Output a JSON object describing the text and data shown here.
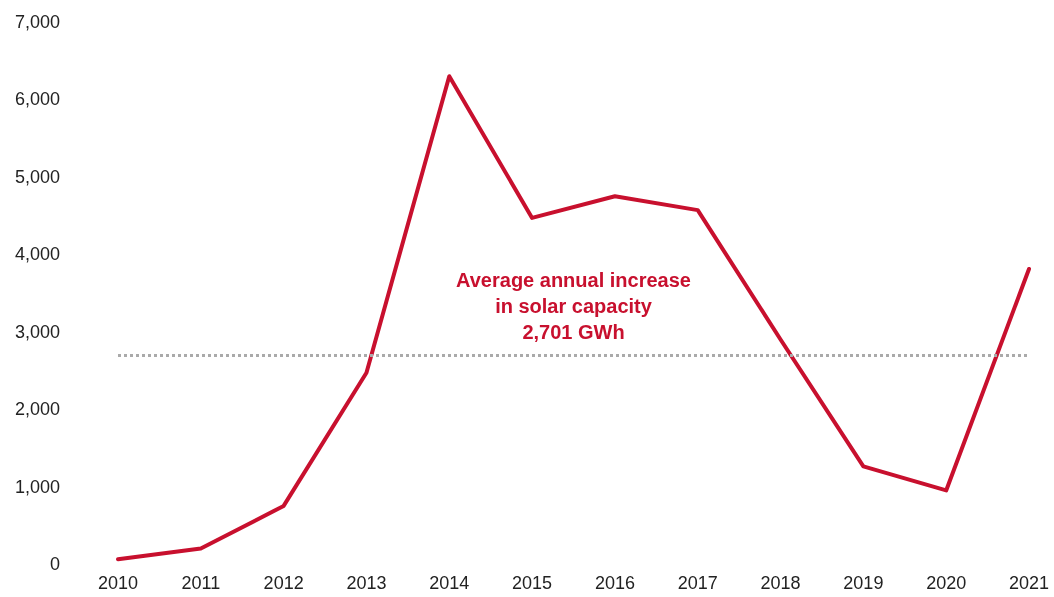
{
  "chart_data": {
    "type": "line",
    "categories": [
      "2010",
      "2011",
      "2012",
      "2013",
      "2014",
      "2015",
      "2016",
      "2017",
      "2018",
      "2019",
      "2020",
      "2021"
    ],
    "series": [
      {
        "color": "#c8102e",
        "values": [
          60,
          200,
          750,
          2470,
          6300,
          4470,
          4750,
          4570,
          2900,
          1260,
          950,
          3810
        ]
      }
    ],
    "ylim": [
      0,
      7000
    ],
    "yticks": [
      {
        "value": 0,
        "label": "0"
      },
      {
        "value": 1000,
        "label": "1,000"
      },
      {
        "value": 2000,
        "label": "2,000"
      },
      {
        "value": 3000,
        "label": "3,000"
      },
      {
        "value": 4000,
        "label": "4,000"
      },
      {
        "value": 5000,
        "label": "5,000"
      },
      {
        "value": 6000,
        "label": "6,000"
      },
      {
        "value": 7000,
        "label": "7,000"
      }
    ],
    "ref_lines": [
      {
        "axis": "y",
        "value": 2701,
        "label": "Average annual increase\nin solar capacity\n2,701 GWh",
        "color": "#aaaaaa",
        "line_style": "dotted"
      }
    ],
    "grid": false,
    "marker": "none",
    "line_style": "solid"
  }
}
